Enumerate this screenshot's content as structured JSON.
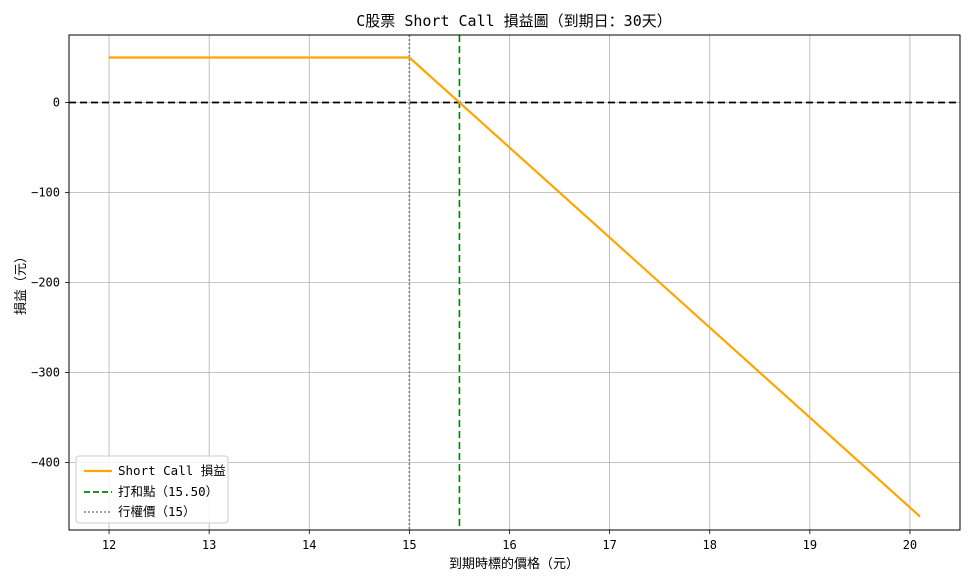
{
  "chart_data": {
    "type": "line",
    "title": "C股票 Short Call 損益圖（到期日：30天）",
    "xlabel": "到期時標的價格（元）",
    "ylabel": "損益（元）",
    "xlim": [
      11.6,
      20.5
    ],
    "ylim": [
      -475,
      75
    ],
    "xticks": [
      12,
      13,
      14,
      15,
      16,
      17,
      18,
      19,
      20
    ],
    "yticks": [
      0,
      -100,
      -200,
      -300,
      -400
    ],
    "grid": true,
    "legend_position": "lower-left",
    "series": [
      {
        "name": "Short Call 損益",
        "color": "#FFA500",
        "style": "solid",
        "x": [
          12,
          15,
          20.1
        ],
        "y": [
          50,
          50,
          -460
        ]
      }
    ],
    "reference_lines": [
      {
        "name": "打和點（15.50）",
        "orientation": "vertical",
        "value": 15.5,
        "color": "#008000",
        "style": "dashed"
      },
      {
        "name": "行權價（15）",
        "orientation": "vertical",
        "value": 15,
        "color": "#808080",
        "style": "dotted"
      },
      {
        "name": "",
        "orientation": "horizontal",
        "value": 0,
        "color": "#000000",
        "style": "dashed"
      }
    ]
  }
}
